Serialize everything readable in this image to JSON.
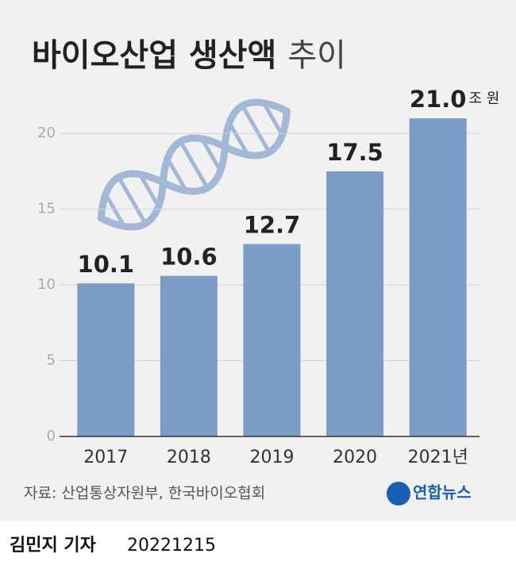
{
  "chart_data": {
    "type": "bar",
    "title": "바이오산업 생산액",
    "title_suffix": "추이",
    "categories": [
      "2017",
      "2018",
      "2019",
      "2020",
      "2021년"
    ],
    "values": [
      10.1,
      10.6,
      12.7,
      17.5,
      21.0
    ],
    "value_labels": [
      "10.1",
      "10.6",
      "12.7",
      "17.5",
      "21.0"
    ],
    "unit": "조 원",
    "color": "#7b9cc6",
    "ylim": [
      0,
      22
    ],
    "yticks": [
      0,
      5,
      10,
      15,
      20
    ],
    "grid": true,
    "source": "자료: 산업통상자원부, 한국바이오협회"
  },
  "logo": "연합뉴스",
  "footer": {
    "reporter": "김민지 기자",
    "date": "20221215"
  }
}
